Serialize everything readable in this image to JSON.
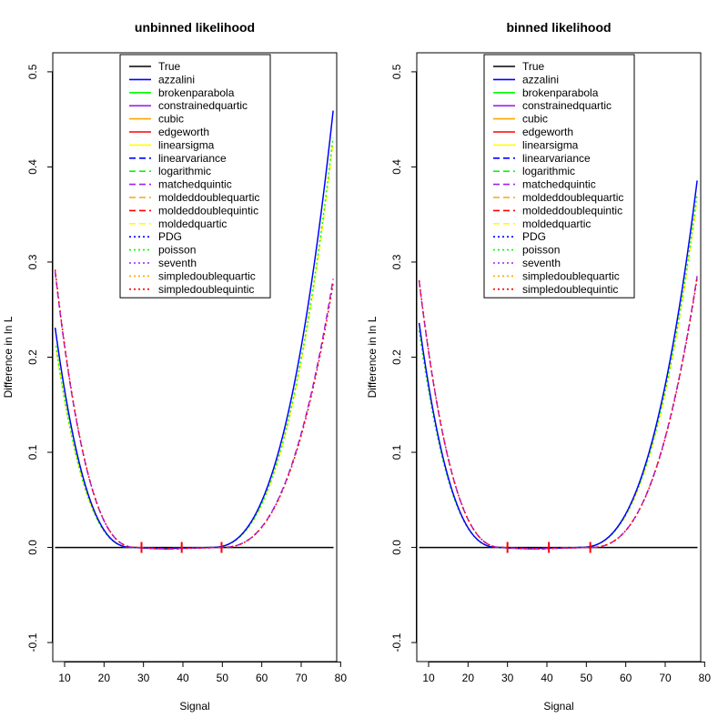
{
  "chart_data": [
    {
      "type": "line",
      "title": "unbinned likelihood",
      "xlabel": "Signal",
      "ylabel": "Difference in ln L",
      "xlim": [
        7,
        79
      ],
      "ylim": [
        -0.12,
        0.52
      ],
      "xticks": [
        10,
        20,
        30,
        40,
        50,
        60,
        70,
        80
      ],
      "yticks": [
        -0.1,
        0.0,
        0.1,
        0.2,
        0.3,
        0.4,
        0.5
      ],
      "legend_position": "top-center",
      "markers": [
        29.5,
        39.7,
        49.8
      ],
      "curve_params": {
        "blue": {
          "left": 0.231,
          "right": 0.463,
          "x0": 7.6,
          "x1": 78.2
        },
        "green": {
          "left": 0.212,
          "right": 0.436,
          "x0": 7.8,
          "x1": 78.2
        },
        "yellow": {
          "left": 0.205,
          "right": 0.43,
          "x0": 8.0,
          "x1": 78.2
        },
        "red": {
          "left": 0.292,
          "right": 0.28,
          "x0": 7.6,
          "x1": 78.2
        },
        "purple": {
          "left": 0.29,
          "right": 0.285,
          "x0": 7.6,
          "x1": 78.2
        }
      },
      "series": [
        {
          "name": "True",
          "color": "#000000",
          "dash": "solid",
          "group": "true"
        },
        {
          "name": "azzalini",
          "color": "#0000ff",
          "dash": "solid",
          "group": "blue"
        },
        {
          "name": "brokenparabola",
          "color": "#00ff00",
          "dash": "solid",
          "group": "green"
        },
        {
          "name": "constrainedquartic",
          "color": "#a020f0",
          "dash": "solid",
          "group": "purple"
        },
        {
          "name": "cubic",
          "color": "#ffa500",
          "dash": "solid",
          "group": "red"
        },
        {
          "name": "edgeworth",
          "color": "#ff0000",
          "dash": "solid",
          "group": "red"
        },
        {
          "name": "linearsigma",
          "color": "#ffff00",
          "dash": "solid",
          "group": "yellow"
        },
        {
          "name": "linearvariance",
          "color": "#0000ff",
          "dash": "dashed",
          "group": "blue"
        },
        {
          "name": "logarithmic",
          "color": "#00ff00",
          "dash": "dashed",
          "group": "green"
        },
        {
          "name": "matchedquintic",
          "color": "#a020f0",
          "dash": "dashed",
          "group": "purple"
        },
        {
          "name": "moldeddoublequartic",
          "color": "#ffa500",
          "dash": "dashed",
          "group": "red"
        },
        {
          "name": "moldeddoublequintic",
          "color": "#ff0000",
          "dash": "dashed",
          "group": "red"
        },
        {
          "name": "moldedquartic",
          "color": "#ffff00",
          "dash": "dashed",
          "group": "yellow"
        },
        {
          "name": "PDG",
          "color": "#0000ff",
          "dash": "dotted",
          "group": "blue"
        },
        {
          "name": "poisson",
          "color": "#00ff00",
          "dash": "dotted",
          "group": "green"
        },
        {
          "name": "seventh",
          "color": "#a020f0",
          "dash": "dotted",
          "group": "purple"
        },
        {
          "name": "simpledoublequartic",
          "color": "#ffa500",
          "dash": "dotted",
          "group": "red"
        },
        {
          "name": "simpledoublequintic",
          "color": "#ff0000",
          "dash": "dotted",
          "group": "red"
        }
      ]
    },
    {
      "type": "line",
      "title": "binned likelihood",
      "xlabel": "Signal",
      "ylabel": "Difference in ln L",
      "xlim": [
        7,
        79
      ],
      "ylim": [
        -0.12,
        0.52
      ],
      "xticks": [
        10,
        20,
        30,
        40,
        50,
        60,
        70,
        80
      ],
      "yticks": [
        -0.1,
        0.0,
        0.1,
        0.2,
        0.3,
        0.4,
        0.5
      ],
      "legend_position": "top-center",
      "markers": [
        30.0,
        40.5,
        51.0
      ],
      "curve_params": {
        "blue": {
          "left": 0.236,
          "right": 0.389,
          "x0": 7.6,
          "x1": 78.2
        },
        "green": {
          "left": 0.228,
          "right": 0.375,
          "x0": 7.6,
          "x1": 78.2
        },
        "yellow": {
          "left": 0.222,
          "right": 0.37,
          "x0": 8.0,
          "x1": 78.2
        },
        "red": {
          "left": 0.281,
          "right": 0.286,
          "x0": 7.6,
          "x1": 78.2
        },
        "purple": {
          "left": 0.28,
          "right": 0.288,
          "x0": 7.6,
          "x1": 78.2
        }
      },
      "series": [
        {
          "name": "True",
          "color": "#000000",
          "dash": "solid",
          "group": "true"
        },
        {
          "name": "azzalini",
          "color": "#0000ff",
          "dash": "solid",
          "group": "blue"
        },
        {
          "name": "brokenparabola",
          "color": "#00ff00",
          "dash": "solid",
          "group": "green"
        },
        {
          "name": "constrainedquartic",
          "color": "#a020f0",
          "dash": "solid",
          "group": "purple"
        },
        {
          "name": "cubic",
          "color": "#ffa500",
          "dash": "solid",
          "group": "red"
        },
        {
          "name": "edgeworth",
          "color": "#ff0000",
          "dash": "solid",
          "group": "red"
        },
        {
          "name": "linearsigma",
          "color": "#ffff00",
          "dash": "solid",
          "group": "yellow"
        },
        {
          "name": "linearvariance",
          "color": "#0000ff",
          "dash": "dashed",
          "group": "blue"
        },
        {
          "name": "logarithmic",
          "color": "#00ff00",
          "dash": "dashed",
          "group": "green"
        },
        {
          "name": "matchedquintic",
          "color": "#a020f0",
          "dash": "dashed",
          "group": "purple"
        },
        {
          "name": "moldeddoublequartic",
          "color": "#ffa500",
          "dash": "dashed",
          "group": "red"
        },
        {
          "name": "moldeddoublequintic",
          "color": "#ff0000",
          "dash": "dashed",
          "group": "red"
        },
        {
          "name": "moldedquartic",
          "color": "#ffff00",
          "dash": "dashed",
          "group": "yellow"
        },
        {
          "name": "PDG",
          "color": "#0000ff",
          "dash": "dotted",
          "group": "blue"
        },
        {
          "name": "poisson",
          "color": "#00ff00",
          "dash": "dotted",
          "group": "green"
        },
        {
          "name": "seventh",
          "color": "#a020f0",
          "dash": "dotted",
          "group": "purple"
        },
        {
          "name": "simpledoublequartic",
          "color": "#ffa500",
          "dash": "dotted",
          "group": "red"
        },
        {
          "name": "simpledoublequintic",
          "color": "#ff0000",
          "dash": "dotted",
          "group": "red"
        }
      ]
    }
  ]
}
